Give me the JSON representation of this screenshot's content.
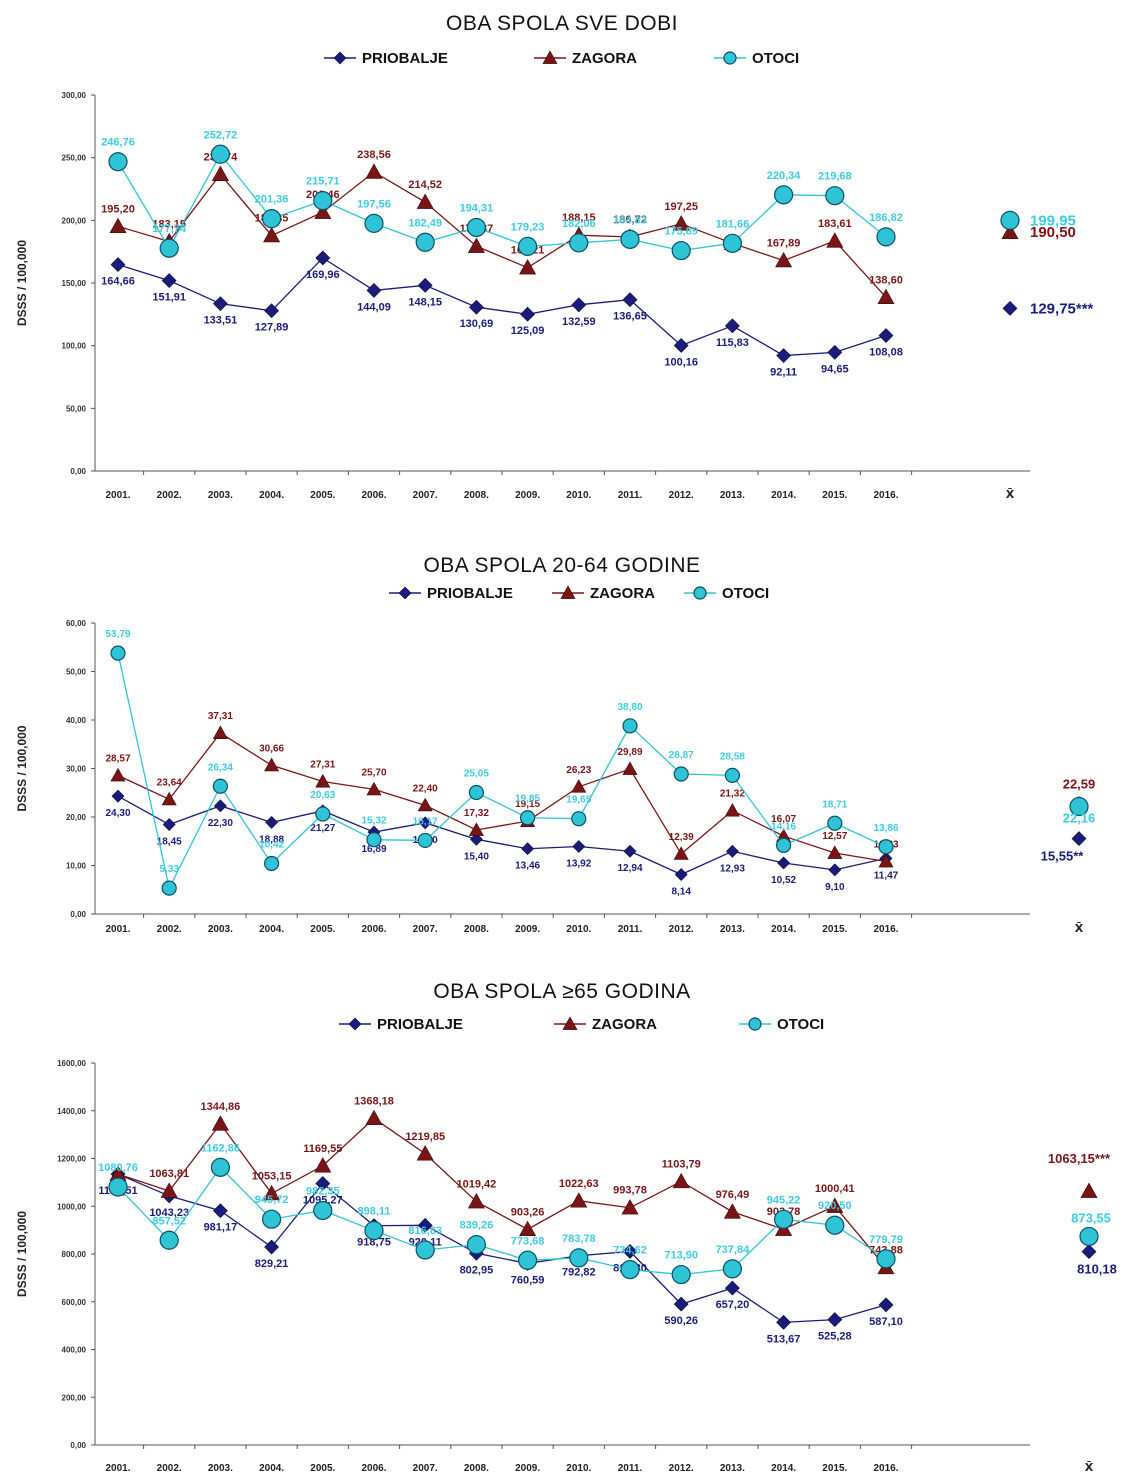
{
  "colors": {
    "PRIOBALJE": "#1b1b7a",
    "ZAGORA": "#7a1515",
    "OTOCI": "#2ec4d6",
    "axis": "#555555"
  },
  "chart_data": [
    {
      "type": "line",
      "title": "OBA SPOLA SVE DOBI",
      "xlabel": "",
      "ylabel": "DSSS / 100,000",
      "ylim": [
        0,
        300
      ],
      "yticks": [
        "0,00",
        "50,00",
        "100,00",
        "150,00",
        "200,00",
        "250,00",
        "300,00"
      ],
      "categories": [
        "2001.",
        "2002.",
        "2003.",
        "2004.",
        "2005.",
        "2006.",
        "2007.",
        "2008.",
        "2009.",
        "2010.",
        "2011.",
        "2012.",
        "2013.",
        "2014.",
        "2015.",
        "2016."
      ],
      "mean_label": "X̄",
      "legend": [
        "PRIOBALJE",
        "ZAGORA",
        "OTOCI"
      ],
      "series": [
        {
          "name": "PRIOBALJE",
          "marker": "diamond",
          "values": [
            164.66,
            151.91,
            133.51,
            127.89,
            169.96,
            144.09,
            148.15,
            130.69,
            125.09,
            132.59,
            136.65,
            100.16,
            115.83,
            92.11,
            94.65,
            108.08
          ],
          "labels": [
            "164,66",
            "151,91",
            "133,51",
            "127,89",
            "169,96",
            "144,09",
            "148,15",
            "130,69",
            "125,09",
            "132,59",
            "136,65",
            "100,16",
            "115,83",
            "92,11",
            "94,65",
            "108,08"
          ],
          "mean": 129.75,
          "mean_label": "129,75***"
        },
        {
          "name": "ZAGORA",
          "marker": "triangle",
          "values": [
            195.2,
            183.15,
            236.74,
            187.85,
            206.46,
            238.56,
            214.52,
            179.37,
            162.21,
            188.15,
            186.72,
            197.25,
            181.66,
            167.89,
            183.61,
            138.6
          ],
          "labels": [
            "195,20",
            "183,15",
            "236,74",
            "187,85",
            "206,46",
            "238,56",
            "214,52",
            "179,37",
            "162,21",
            "188,15",
            "186,72",
            "197,25",
            "",
            "167,89",
            "183,61",
            "138,60"
          ],
          "mean": 190.5,
          "mean_label": "190,50"
        },
        {
          "name": "OTOCI",
          "marker": "circle",
          "values": [
            246.76,
            177.74,
            252.72,
            201.36,
            215.71,
            197.56,
            182.49,
            194.31,
            179.23,
            182.06,
            184.83,
            175.89,
            181.66,
            220.34,
            219.68,
            186.82
          ],
          "labels": [
            "246,76",
            "177,74",
            "252,72",
            "201,36",
            "215,71",
            "197,56",
            "182,49",
            "194,31",
            "179,23",
            "182,06",
            "184,83",
            "175,89",
            "181,66",
            "220,34",
            "219,68",
            "186,82"
          ],
          "mean": 199.95,
          "mean_label": "199,95"
        }
      ]
    },
    {
      "type": "line",
      "title": "OBA SPOLA 20-64 GODINE",
      "xlabel": "",
      "ylabel": "DSSS / 100,000",
      "ylim": [
        0,
        60
      ],
      "yticks": [
        "0,00",
        "10,00",
        "20,00",
        "30,00",
        "40,00",
        "50,00",
        "60,00"
      ],
      "categories": [
        "2001.",
        "2002.",
        "2003.",
        "2004.",
        "2005.",
        "2006.",
        "2007.",
        "2008.",
        "2009.",
        "2010.",
        "2011.",
        "2012.",
        "2013.",
        "2014.",
        "2015.",
        "2016."
      ],
      "mean_label": "X̄",
      "legend": [
        "PRIOBALJE",
        "ZAGORA",
        "OTOCI"
      ],
      "series": [
        {
          "name": "PRIOBALJE",
          "marker": "diamond",
          "values": [
            24.3,
            18.45,
            22.3,
            18.88,
            21.27,
            16.89,
            18.8,
            15.4,
            13.46,
            13.92,
            12.94,
            8.14,
            12.93,
            10.52,
            9.1,
            11.47
          ],
          "labels": [
            "24,30",
            "18,45",
            "22,30",
            "18,88",
            "21,27",
            "16,89",
            "18,80",
            "15,40",
            "13,46",
            "13,92",
            "12,94",
            "8,14",
            "12,93",
            "10,52",
            "9,10",
            "11,47"
          ],
          "mean": 15.55,
          "mean_label": "15,55**"
        },
        {
          "name": "ZAGORA",
          "marker": "triangle",
          "values": [
            28.57,
            23.64,
            37.31,
            30.66,
            27.31,
            25.7,
            22.4,
            17.32,
            19.15,
            26.23,
            29.89,
            12.39,
            21.32,
            16.07,
            12.57,
            10.83
          ],
          "labels": [
            "28,57",
            "23,64",
            "37,31",
            "30,66",
            "27,31",
            "25,70",
            "22,40",
            "17,32",
            "19,15",
            "26,23",
            "29,89",
            "12,39",
            "21,32",
            "16,07",
            "12,57",
            "10,83"
          ],
          "mean": 22.59,
          "mean_label": "22,59"
        },
        {
          "name": "OTOCI",
          "marker": "circle",
          "values": [
            53.79,
            5.33,
            26.34,
            10.42,
            20.63,
            15.32,
            15.17,
            25.05,
            19.85,
            19.65,
            38.8,
            28.87,
            28.58,
            14.16,
            18.71,
            13.86
          ],
          "labels": [
            "53,79",
            "5,33",
            "26,34",
            "10,42",
            "20,63",
            "15,32",
            "15,17",
            "25,05",
            "19,85",
            "19,65",
            "38,80",
            "28,87",
            "28,58",
            "14,16",
            "18,71",
            "13,86"
          ],
          "mean": 22.16,
          "mean_label": "22,16"
        }
      ]
    },
    {
      "type": "line",
      "title": "OBA SPOLA ≥65 GODINA",
      "xlabel": "",
      "ylabel": "DSSS / 100,000",
      "ylim": [
        0,
        1600
      ],
      "yticks": [
        "0,00",
        "200,00",
        "400,00",
        "600,00",
        "800,00",
        "1000,00",
        "1200,00",
        "1400,00",
        "1600,00"
      ],
      "categories": [
        "2001.",
        "2002.",
        "2003.",
        "2004.",
        "2005.",
        "2006.",
        "2007.",
        "2008.",
        "2009.",
        "2010.",
        "2011.",
        "2012.",
        "2013.",
        "2014.",
        "2015.",
        "2016."
      ],
      "mean_label": "X̄",
      "legend": [
        "PRIOBALJE",
        "ZAGORA",
        "OTOCI"
      ],
      "series": [
        {
          "name": "PRIOBALJE",
          "marker": "diamond",
          "values": [
            1134.51,
            1043.23,
            981.17,
            829.21,
            1095.27,
            918.75,
            920.11,
            802.95,
            760.59,
            792.82,
            810.8,
            590.26,
            657.2,
            513.67,
            525.28,
            587.1
          ],
          "labels": [
            "1134,51",
            "1043,23",
            "981,17",
            "829,21",
            "1095,27",
            "918,75",
            "920,11",
            "802,95",
            "760,59",
            "792,82",
            "810,80",
            "590,26",
            "657,20",
            "513,67",
            "525,28",
            "587,10"
          ],
          "mean": 810.18,
          "mean_label": "810,18"
        },
        {
          "name": "ZAGORA",
          "marker": "triangle",
          "values": [
            1134.51,
            1063.81,
            1344.86,
            1053.15,
            1169.55,
            1368.18,
            1219.85,
            1019.42,
            903.26,
            1022.63,
            993.78,
            1103.79,
            976.49,
            903.78,
            1000.41,
            743.88
          ],
          "labels": [
            "",
            "1063,81",
            "1344,86",
            "1053,15",
            "1169,55",
            "1368,18",
            "1219,85",
            "1019,42",
            "903,26",
            "1022,63",
            "993,78",
            "1103,79",
            "976,49",
            "903,78",
            "1000,41",
            "743,88"
          ],
          "mean": 1063.15,
          "mean_label": "1063,15***"
        },
        {
          "name": "OTOCI",
          "marker": "circle",
          "values": [
            1080.76,
            857.52,
            1162.86,
            945.72,
            982.35,
            898.11,
            816.83,
            839.26,
            773.68,
            783.78,
            734.62,
            713.9,
            737.84,
            945.22,
            920.5,
            779.79
          ],
          "labels": [
            "1080,76",
            "857,52",
            "1162,86",
            "945,72",
            "982,35",
            "898,11",
            "816,83",
            "839,26",
            "773,68",
            "783,78",
            "734,62",
            "713,90",
            "737,84",
            "945,22",
            "920,50",
            "779,79"
          ],
          "mean": 873.55,
          "mean_label": "873,55"
        }
      ]
    }
  ]
}
